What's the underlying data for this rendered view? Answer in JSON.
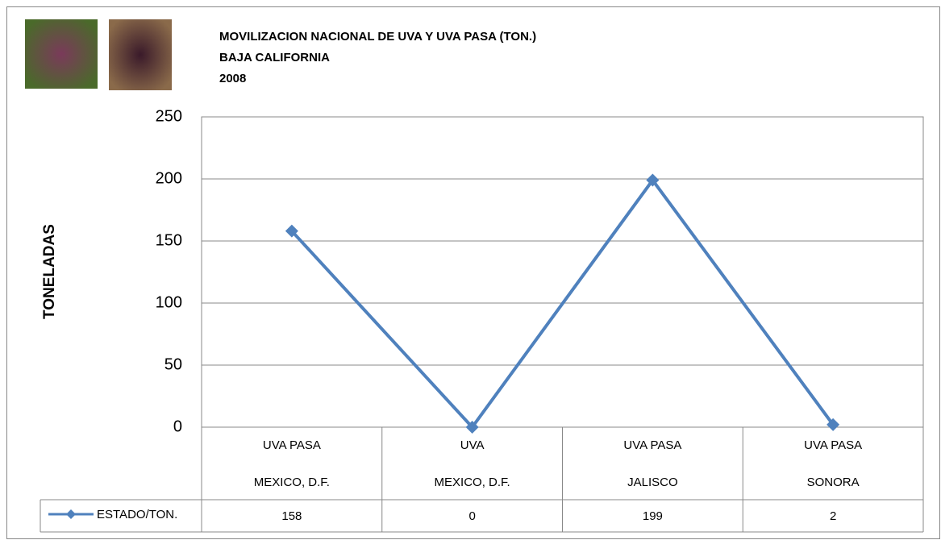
{
  "chart_data": {
    "type": "line",
    "title_lines": [
      "MOVILIZACION NACIONAL DE UVA Y UVA PASA (TON.)",
      "BAJA CALIFORNIA",
      "2008"
    ],
    "y_label": "TONELADAS",
    "categories": [
      [
        "UVA PASA",
        "MEXICO, D.F."
      ],
      [
        "UVA",
        "MEXICO, D.F."
      ],
      [
        "UVA PASA",
        "JALISCO"
      ],
      [
        "UVA PASA",
        "SONORA"
      ]
    ],
    "series": [
      {
        "name": "ESTADO/TON.",
        "color": "#4f81bd",
        "values": [
          158,
          0,
          199,
          2
        ]
      }
    ],
    "ylim": [
      0,
      250
    ],
    "yticks": [
      0,
      50,
      100,
      150,
      200,
      250
    ],
    "grid": true
  }
}
